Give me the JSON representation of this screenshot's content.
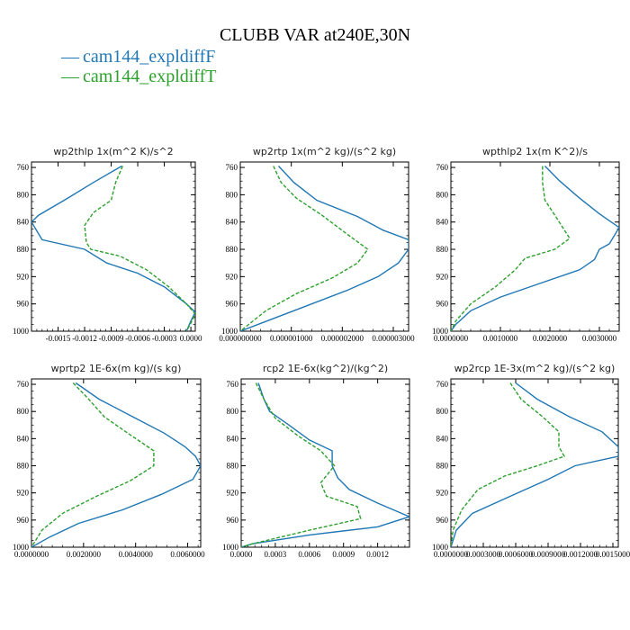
{
  "title": "CLUBB VAR at240E,30N",
  "legend": [
    {
      "name": "cam144_expldiffF",
      "color": "#1f77b4",
      "dash": "solid"
    },
    {
      "name": "cam144_expldiffT",
      "color": "#2ca02c",
      "dash": "dashed"
    }
  ],
  "chart_data": [
    {
      "type": "line",
      "title": "wp2thlp   1x(m^2 K)/s^2",
      "xlim": [
        -0.0018,
        5e-05
      ],
      "ylim": [
        1000,
        752
      ],
      "xticks": [
        -0.0015,
        -0.0012,
        -0.0009,
        -0.0006,
        -0.0003,
        0.0
      ],
      "xtick_labels": [
        "-0.0015",
        "-0.0012",
        "-0.0009",
        "-0.0006",
        "-0.0003",
        "0.0000"
      ],
      "yticks": [
        760,
        800,
        840,
        880,
        920,
        960,
        1000
      ],
      "series": [
        {
          "points": [
            [
              -0.00078,
              758
            ],
            [
              -0.0011,
              782
            ],
            [
              -0.00143,
              808
            ],
            [
              -0.00172,
              830
            ],
            [
              -0.0018,
              840
            ],
            [
              -0.00168,
              866
            ],
            [
              -0.0012,
              880
            ],
            [
              -0.00095,
              900
            ],
            [
              -0.0006,
              915
            ],
            [
              -0.0003,
              935
            ],
            [
              -5e-05,
              960
            ],
            [
              5e-05,
              972
            ],
            [
              0.0,
              985
            ],
            [
              -5e-05,
              1000
            ]
          ]
        },
        {
          "points": [
            [
              -0.00077,
              758
            ],
            [
              -0.00085,
              782
            ],
            [
              -0.0009,
              808
            ],
            [
              -0.0011,
              826
            ],
            [
              -0.0012,
              845
            ],
            [
              -0.00118,
              870
            ],
            [
              -0.00113,
              880
            ],
            [
              -0.0008,
              890
            ],
            [
              -0.0005,
              910
            ],
            [
              -0.00025,
              935
            ],
            [
              -5e-05,
              960
            ],
            [
              5e-05,
              975
            ],
            [
              0.0,
              988
            ],
            [
              -5e-05,
              1000
            ]
          ]
        }
      ]
    },
    {
      "type": "line",
      "title": "wp2rtp   1x(m^2 kg)/(s^2 kg)",
      "xlim": [
        0.0,
        3.3e-06
      ],
      "ylim": [
        1000,
        752
      ],
      "xticks": [
        0.0,
        1e-06,
        2e-06,
        3e-06
      ],
      "xtick_labels": [
        "0.000000000",
        "0.000001000",
        "0.000002000",
        "0.000003000"
      ],
      "yticks": [
        760,
        800,
        840,
        880,
        920,
        960,
        1000
      ],
      "series": [
        {
          "points": [
            [
              7.5e-07,
              758
            ],
            [
              1.05e-06,
              782
            ],
            [
              1.5e-06,
              808
            ],
            [
              2.3e-06,
              832
            ],
            [
              2.8e-06,
              852
            ],
            [
              3.3e-06,
              866
            ],
            [
              3.3e-06,
              880
            ],
            [
              3.1e-06,
              900
            ],
            [
              2.7e-06,
              920
            ],
            [
              2.1e-06,
              940
            ],
            [
              1.4e-06,
              960
            ],
            [
              7e-07,
              980
            ],
            [
              0.0,
              1000
            ]
          ]
        },
        {
          "points": [
            [
              6.5e-07,
              758
            ],
            [
              8e-07,
              782
            ],
            [
              1.1e-06,
              805
            ],
            [
              1.6e-06,
              830
            ],
            [
              2.1e-06,
              858
            ],
            [
              2.5e-06,
              880
            ],
            [
              2.3e-06,
              900
            ],
            [
              1.8e-06,
              922
            ],
            [
              1.1e-06,
              945
            ],
            [
              5e-07,
              970
            ],
            [
              0.0,
              1000
            ]
          ]
        }
      ]
    },
    {
      "type": "line",
      "title": "wpthlp2   1x(m K^2)/s",
      "xlim": [
        0.0,
        0.0034
      ],
      "ylim": [
        1000,
        752
      ],
      "xticks": [
        0.0,
        0.001,
        0.002,
        0.003
      ],
      "xtick_labels": [
        "0.0000000",
        "0.0010000",
        "0.0020000",
        "0.0030000"
      ],
      "yticks": [
        760,
        800,
        840,
        880,
        920,
        960,
        1000
      ],
      "series": [
        {
          "points": [
            [
              0.0019,
              758
            ],
            [
              0.0022,
              780
            ],
            [
              0.0026,
              805
            ],
            [
              0.003,
              828
            ],
            [
              0.0034,
              848
            ],
            [
              0.0032,
              872
            ],
            [
              0.003,
              880
            ],
            [
              0.0029,
              895
            ],
            [
              0.0026,
              910
            ],
            [
              0.0018,
              930
            ],
            [
              0.001,
              950
            ],
            [
              0.0004,
              970
            ],
            [
              0.0001,
              990
            ],
            [
              0.0,
              1000
            ]
          ]
        },
        {
          "points": [
            [
              0.00185,
              758
            ],
            [
              0.00185,
              782
            ],
            [
              0.0019,
              808
            ],
            [
              0.0021,
              830
            ],
            [
              0.0024,
              864
            ],
            [
              0.0021,
              880
            ],
            [
              0.0015,
              893
            ],
            [
              0.0013,
              910
            ],
            [
              0.0009,
              935
            ],
            [
              0.0004,
              960
            ],
            [
              0.0001,
              985
            ],
            [
              0.0,
              1000
            ]
          ]
        }
      ]
    },
    {
      "type": "line",
      "title": "wprtp2   1E-6x(m kg)/(s kg)",
      "xlim": [
        0.0,
        0.0065
      ],
      "ylim": [
        1000,
        752
      ],
      "xticks": [
        0.0,
        0.002,
        0.004,
        0.006
      ],
      "xtick_labels": [
        "0.0000000",
        "0.0020000",
        "0.0040000",
        "0.0060000"
      ],
      "yticks": [
        760,
        800,
        840,
        880,
        920,
        960,
        1000
      ],
      "series": [
        {
          "points": [
            [
              0.0017,
              758
            ],
            [
              0.0026,
              782
            ],
            [
              0.0039,
              808
            ],
            [
              0.0051,
              832
            ],
            [
              0.0059,
              852
            ],
            [
              0.0063,
              866
            ],
            [
              0.0065,
              880
            ],
            [
              0.0062,
              900
            ],
            [
              0.005,
              922
            ],
            [
              0.0035,
              945
            ],
            [
              0.0018,
              965
            ],
            [
              0.0007,
              985
            ],
            [
              0.0,
              1000
            ]
          ]
        },
        {
          "points": [
            [
              0.0016,
              758
            ],
            [
              0.0022,
              782
            ],
            [
              0.0028,
              808
            ],
            [
              0.0037,
              832
            ],
            [
              0.0047,
              858
            ],
            [
              0.0047,
              880
            ],
            [
              0.0038,
              902
            ],
            [
              0.0025,
              925
            ],
            [
              0.0012,
              950
            ],
            [
              0.0004,
              975
            ],
            [
              0.0,
              1000
            ]
          ]
        }
      ]
    },
    {
      "type": "line",
      "title": "rcp2   1E-6x(kg^2)/(kg^2)",
      "xlim": [
        0.0,
        0.00148
      ],
      "ylim": [
        1000,
        752
      ],
      "xticks": [
        0.0,
        0.0003,
        0.0006,
        0.0009,
        0.0012
      ],
      "xtick_labels": [
        "0.0000",
        "0.0003",
        "0.0006",
        "0.0009",
        "0.0012"
      ],
      "yticks": [
        760,
        800,
        840,
        880,
        920,
        960,
        1000
      ],
      "series": [
        {
          "points": [
            [
              0.00015,
              758
            ],
            [
              0.0002,
              782
            ],
            [
              0.00025,
              800
            ],
            [
              0.00042,
              820
            ],
            [
              0.0006,
              842
            ],
            [
              0.0008,
              858
            ],
            [
              0.0008,
              880
            ],
            [
              0.00085,
              898
            ],
            [
              0.00095,
              915
            ],
            [
              0.0012,
              935
            ],
            [
              0.00148,
              955
            ],
            [
              0.0012,
              970
            ],
            [
              0.0006,
              982
            ],
            [
              0.0001,
              995
            ],
            [
              0.0,
              1000
            ]
          ]
        },
        {
          "points": [
            [
              0.00013,
              758
            ],
            [
              0.0002,
              782
            ],
            [
              0.0003,
              810
            ],
            [
              0.0005,
              836
            ],
            [
              0.0007,
              858
            ],
            [
              0.00082,
              880
            ],
            [
              0.0007,
              905
            ],
            [
              0.00075,
              925
            ],
            [
              0.00102,
              940
            ],
            [
              0.00105,
              958
            ],
            [
              0.0006,
              975
            ],
            [
              0.0001,
              995
            ],
            [
              0.0,
              1000
            ]
          ]
        }
      ]
    },
    {
      "type": "line",
      "title": "wp2rcp   1E-3x(m^2 kg)/(s^2 kg)",
      "xlim": [
        0.0,
        0.00155
      ],
      "ylim": [
        1000,
        752
      ],
      "xticks": [
        0.0,
        0.0003,
        0.0006,
        0.0009,
        0.0012,
        0.0015
      ],
      "xtick_labels": [
        "0.0000000",
        "0.0003000",
        "0.0006000",
        "0.0009000",
        "0.0012000",
        "0.0015000"
      ],
      "yticks": [
        760,
        800,
        840,
        880,
        920,
        960,
        1000
      ],
      "series": [
        {
          "points": [
            [
              0.0006,
              758
            ],
            [
              0.0008,
              782
            ],
            [
              0.0011,
              808
            ],
            [
              0.0014,
              830
            ],
            [
              0.00155,
              852
            ],
            [
              0.00155,
              866
            ],
            [
              0.00115,
              880
            ],
            [
              0.0009,
              900
            ],
            [
              0.00055,
              925
            ],
            [
              0.0002,
              950
            ],
            [
              5e-05,
              975
            ],
            [
              0.0,
              1000
            ]
          ]
        },
        {
          "points": [
            [
              0.00055,
              758
            ],
            [
              0.00065,
              782
            ],
            [
              0.00085,
              808
            ],
            [
              0.001,
              830
            ],
            [
              0.001,
              852
            ],
            [
              0.00105,
              866
            ],
            [
              0.0008,
              880
            ],
            [
              0.0005,
              895
            ],
            [
              0.00025,
              915
            ],
            [
              0.0001,
              945
            ],
            [
              2e-05,
              975
            ],
            [
              0.0,
              1000
            ]
          ]
        }
      ]
    }
  ]
}
